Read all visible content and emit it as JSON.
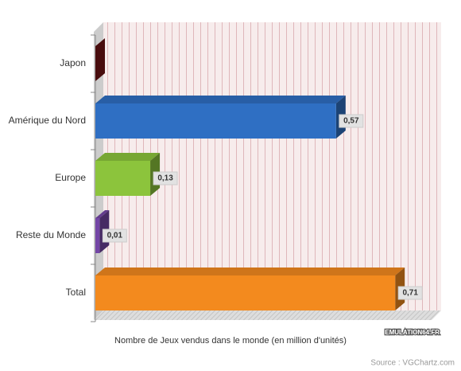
{
  "chart_data": {
    "type": "bar3d",
    "orientation": "horizontal",
    "categories": [
      "Japon",
      "Amérique du Nord",
      "Europe",
      "Reste du Monde",
      "Total"
    ],
    "values": [
      0,
      0.57,
      0.13,
      0.01,
      0.71
    ],
    "value_labels": [
      null,
      "0,57",
      "0,13",
      "0,01",
      "0,71"
    ],
    "colors": [
      "#7a1518",
      "#2f6fc3",
      "#8cc43c",
      "#7446a6",
      "#f38a1e"
    ],
    "xlim": [
      0,
      0.8
    ],
    "x_label": "Nombre de Jeux vendus dans le monde (en million d'unités)",
    "watermark": "EMULATION64.FR",
    "source": "Source : VGChartz.com"
  }
}
